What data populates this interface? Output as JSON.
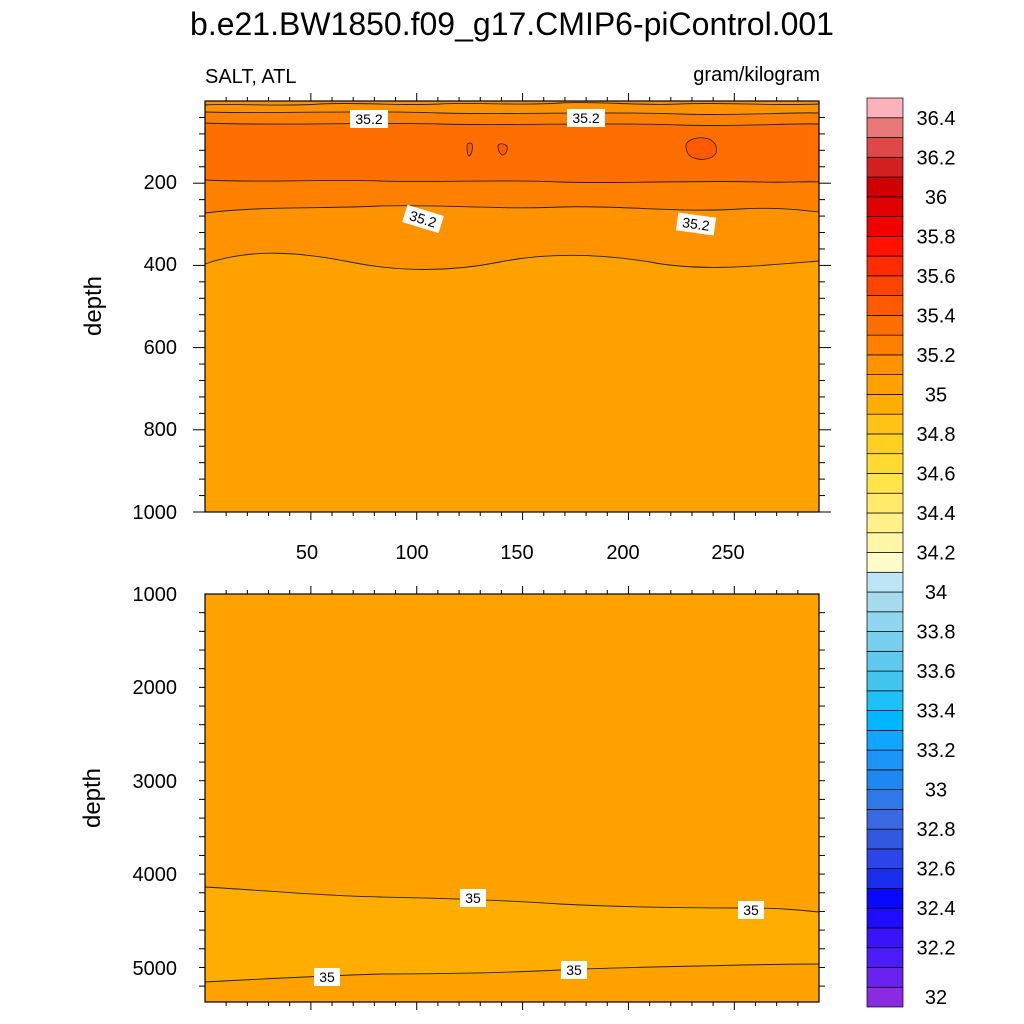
{
  "chart_data": {
    "type": "contour",
    "title": "b.e21.BW1850.f09_g17.CMIP6-piControl.001",
    "variable_label": "SALT, ATL",
    "units_label": "gram/kilogram",
    "colorbar": {
      "levels": [
        32,
        32.1,
        32.2,
        32.3,
        32.4,
        32.5,
        32.6,
        32.7,
        32.8,
        32.9,
        33,
        33.1,
        33.2,
        33.3,
        33.4,
        33.5,
        33.6,
        33.7,
        33.8,
        33.9,
        34,
        34.1,
        34.2,
        34.3,
        34.4,
        34.5,
        34.6,
        34.7,
        34.8,
        34.9,
        35,
        35.1,
        35.2,
        35.3,
        35.4,
        35.5,
        35.6,
        35.7,
        35.8,
        35.9,
        36,
        36.1,
        36.2,
        36.3,
        36.4,
        36.5
      ],
      "labels": [
        "32",
        "32.2",
        "32.4",
        "32.6",
        "32.8",
        "33",
        "33.2",
        "33.4",
        "33.6",
        "33.8",
        "34",
        "34.2",
        "34.4",
        "34.6",
        "34.8",
        "35",
        "35.2",
        "35.4",
        "35.6",
        "35.8",
        "36",
        "36.2",
        "36.4"
      ],
      "colors": [
        "#8a2be2",
        "#6a22ee",
        "#4b1cf7",
        "#3a13fb",
        "#1f0bfd",
        "#0808ff",
        "#1a2fee",
        "#2b45e8",
        "#3358e0",
        "#3a68e2",
        "#2e78ea",
        "#1e88f2",
        "#1c95f8",
        "#10a5ff",
        "#00b6ff",
        "#1ec0f8",
        "#42c6f0",
        "#5ecbee",
        "#78d0ee",
        "#90d6ee",
        "#a6daef",
        "#bde5f5",
        "#fffccc",
        "#fff6a8",
        "#fff08a",
        "#ffea6a",
        "#ffe44a",
        "#ffda30",
        "#ffd020",
        "#ffc315",
        "#ffae00",
        "#ffa200",
        "#ff9200",
        "#ff8000",
        "#ff6e00",
        "#ff5a00",
        "#ff4400",
        "#ff2c00",
        "#ff1200",
        "#f20000",
        "#e00000",
        "#d00000",
        "#d42020",
        "#e04848",
        "#ea7878",
        "#fbb2bc"
      ]
    },
    "upper_panel": {
      "x_range": [
        0,
        290
      ],
      "x_ticks": [
        50,
        100,
        150,
        200,
        250
      ],
      "y_range": [
        0,
        1000
      ],
      "y_ticks": [
        200,
        400,
        600,
        800,
        1000
      ],
      "ylabel": "depth",
      "contour_labels": [
        "35.2",
        "35.2",
        "35.2",
        "35.2"
      ]
    },
    "lower_panel": {
      "x_range": [
        0,
        290
      ],
      "y_range": [
        1000,
        5400
      ],
      "y_ticks": [
        1000,
        2000,
        3000,
        4000,
        5000
      ],
      "ylabel": "depth",
      "contour_labels": [
        "35",
        "35",
        "35",
        "35"
      ]
    }
  }
}
